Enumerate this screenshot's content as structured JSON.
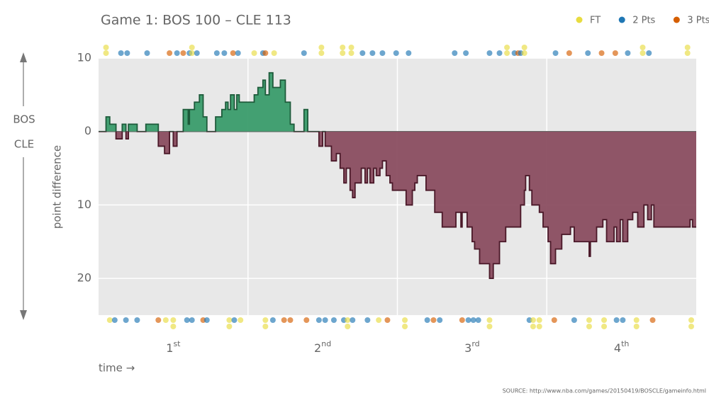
{
  "chart_data": {
    "type": "step-area",
    "title": "Game 1: BOS 100  –  CLE 113",
    "top_team": "BOS",
    "bottom_team": "CLE",
    "y_label": "point difference",
    "x_label": "time →",
    "source": "SOURCE: http://www.nba.com/games/20150419/BOSCLE/gameinfo.html",
    "xlim": [
      0,
      48
    ],
    "ylim": [
      -25,
      10
    ],
    "yticks": [
      10,
      0,
      {
        "value": -10,
        "label": "10"
      },
      {
        "value": -20,
        "label": "20"
      }
    ],
    "xticks": [
      {
        "value": 6,
        "label": "1st"
      },
      {
        "value": 18,
        "label": "2nd"
      },
      {
        "value": 30,
        "label": "3rd"
      },
      {
        "value": 42,
        "label": "4th"
      }
    ],
    "xgrid": [
      12,
      24,
      36
    ],
    "grid": true,
    "positive_color": "#3a9c6c",
    "negative_color": "#8a4d60",
    "series": [
      {
        "x": [
          0,
          0.6,
          0.9,
          1.4,
          1.9,
          2.2,
          2.4,
          3.1,
          3.8,
          4.8,
          5.3,
          5.7,
          6.0,
          6.3,
          6.8,
          7.2,
          7.3,
          7.7,
          8.1,
          8.4,
          8.7,
          9.4,
          9.9,
          10.2,
          10.4,
          10.6,
          10.9,
          11.1,
          11.3,
          12.5,
          12.8,
          13.2,
          13.4,
          13.7,
          14.0,
          14.6,
          15.0,
          15.4,
          15.7,
          16.5,
          16.8,
          17.7,
          18.0,
          18.2,
          18.7,
          19.1,
          19.4,
          19.7,
          19.9,
          20.2,
          20.4,
          20.6,
          21.1,
          21.4,
          21.6,
          21.8,
          22.1,
          22.3,
          22.6,
          22.8,
          23.1,
          23.4,
          23.6,
          24.1,
          24.7,
          25.2,
          25.4,
          25.6,
          26.3,
          27.0,
          27.6,
          28.7,
          29.1,
          29.2,
          29.6,
          30.0,
          30.2,
          30.6,
          31.4,
          31.7,
          32.2,
          32.7,
          33.9,
          34.2,
          34.3,
          34.6,
          34.8,
          35.4,
          35.7,
          36.1,
          36.3,
          36.7,
          37.2,
          37.9,
          38.2,
          39.4,
          39.5,
          40.0,
          40.5,
          40.8,
          41.4,
          41.6,
          41.9,
          42.1,
          42.5,
          42.9,
          43.3,
          43.8,
          44.1,
          44.4,
          44.6,
          47.5,
          47.7
        ],
        "values": [
          0,
          2,
          1,
          -1,
          1,
          -1,
          1,
          0,
          1,
          -2,
          -3,
          0,
          -2,
          0,
          3,
          1,
          3,
          4,
          5,
          2,
          0,
          2,
          3,
          4,
          3,
          5,
          3,
          5,
          4,
          5,
          6,
          7,
          5,
          8,
          6,
          7,
          4,
          1,
          0,
          3,
          0,
          -2,
          0,
          -2,
          -4,
          -3,
          -5,
          -7,
          -5,
          -8,
          -9,
          -7,
          -5,
          -7,
          -5,
          -7,
          -5,
          -6,
          -5,
          -4,
          -6,
          -7,
          -8,
          -8,
          -10,
          -8,
          -7,
          -6,
          -8,
          -11,
          -13,
          -11,
          -13,
          -11,
          -13,
          -15,
          -16,
          -18,
          -20,
          -18,
          -15,
          -13,
          -10,
          -8,
          -6,
          -8,
          -10,
          -11,
          -13,
          -15,
          -18,
          -16,
          -14,
          -13,
          -15,
          -17,
          -15,
          -13,
          -12,
          -15,
          -13,
          -15,
          -12,
          -15,
          -12,
          -11,
          -13,
          -10,
          -12,
          -10,
          -13,
          -12,
          -13
        ]
      }
    ],
    "legend": [
      {
        "name": "FT",
        "points": 1,
        "color": "#e8dc40"
      },
      {
        "name": "2 Pts",
        "points": 2,
        "color": "#1f77b4"
      },
      {
        "name": "3 Pts",
        "points": 3,
        "color": "#d55e00"
      }
    ],
    "scoring": {
      "top": {
        "x": [
          0.6,
          0.6,
          1.8,
          2.3,
          3.9,
          5.7,
          6.3,
          6.8,
          7.3,
          7.5,
          7.5,
          7.9,
          9.5,
          10.1,
          10.8,
          11.2,
          12.5,
          13.2,
          13.4,
          14.1,
          16.5,
          17.9,
          17.9,
          19.6,
          19.6,
          20.3,
          20.3,
          21.2,
          22.0,
          22.8,
          23.9,
          24.9,
          28.6,
          29.5,
          31.4,
          32.2,
          32.8,
          32.8,
          33.4,
          33.7,
          33.9,
          34.2,
          34.2,
          36.7,
          37.8,
          39.3,
          40.4,
          41.5,
          42.5,
          43.7,
          43.7,
          44.2,
          47.3,
          47.3
        ],
        "points": [
          1,
          1,
          2,
          2,
          2,
          3,
          2,
          3,
          2,
          1,
          1,
          2,
          2,
          2,
          3,
          2,
          1,
          2,
          3,
          1,
          2,
          1,
          1,
          1,
          1,
          1,
          1,
          2,
          2,
          2,
          2,
          2,
          2,
          2,
          2,
          2,
          1,
          1,
          2,
          3,
          2,
          1,
          1,
          2,
          3,
          2,
          3,
          3,
          2,
          1,
          1,
          2,
          1,
          1
        ]
      },
      "bottom": {
        "x": [
          0.9,
          1.3,
          2.2,
          3.1,
          4.8,
          5.4,
          6.0,
          6.0,
          7.1,
          7.5,
          8.4,
          8.7,
          10.5,
          10.5,
          10.9,
          11.4,
          13.4,
          13.4,
          14.0,
          14.9,
          15.4,
          16.7,
          17.7,
          18.2,
          18.9,
          19.7,
          20.0,
          20.0,
          20.4,
          21.6,
          22.5,
          23.2,
          24.6,
          24.6,
          26.4,
          26.9,
          27.4,
          29.2,
          29.7,
          30.1,
          30.5,
          31.4,
          31.4,
          34.6,
          34.9,
          34.9,
          35.4,
          35.4,
          36.6,
          38.2,
          39.4,
          39.4,
          40.6,
          40.6,
          41.6,
          42.1,
          43.2,
          43.2,
          44.5,
          47.6,
          47.6
        ],
        "points": [
          1,
          2,
          2,
          2,
          3,
          1,
          1,
          1,
          2,
          2,
          3,
          2,
          1,
          1,
          2,
          1,
          1,
          1,
          2,
          3,
          3,
          3,
          2,
          2,
          2,
          2,
          1,
          1,
          2,
          2,
          1,
          3,
          1,
          1,
          2,
          3,
          2,
          3,
          2,
          2,
          2,
          1,
          1,
          2,
          1,
          1,
          1,
          1,
          3,
          2,
          1,
          1,
          1,
          1,
          2,
          2,
          1,
          1,
          3,
          1,
          1
        ]
      }
    }
  }
}
